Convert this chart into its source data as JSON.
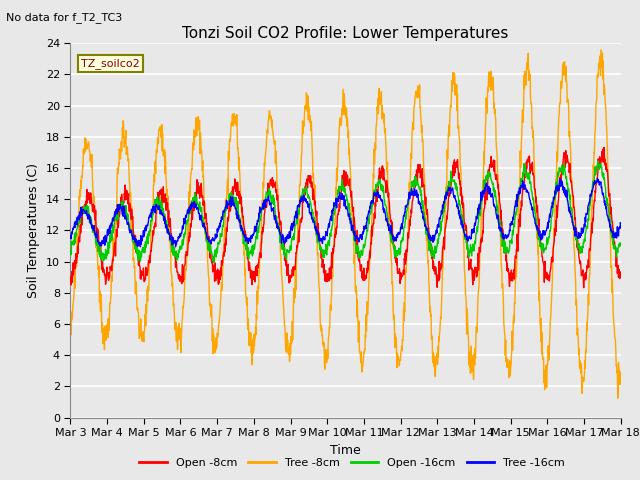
{
  "title": "Tonzi Soil CO2 Profile: Lower Temperatures",
  "subtitle": "No data for f_T2_TC3",
  "xlabel": "Time",
  "ylabel": "Soil Temperatures (C)",
  "ylim": [
    0,
    24
  ],
  "yticks": [
    0,
    2,
    4,
    6,
    8,
    10,
    12,
    14,
    16,
    18,
    20,
    22,
    24
  ],
  "x_labels": [
    "Mar 3",
    "Mar 4",
    "Mar 5",
    "Mar 6",
    "Mar 7",
    "Mar 8",
    "Mar 9",
    "Mar 10",
    "Mar 11",
    "Mar 12",
    "Mar 13",
    "Mar 14",
    "Mar 15",
    "Mar 16",
    "Mar 17",
    "Mar 18"
  ],
  "legend_label": "TZ_soilco2",
  "legend_entries": [
    "Open -8cm",
    "Tree -8cm",
    "Open -16cm",
    "Tree -16cm"
  ],
  "legend_colors": [
    "#ff0000",
    "#ffa500",
    "#00cc00",
    "#0000ff"
  ],
  "bg_color": "#e8e8e8",
  "gridcolor": "#ffffff",
  "line_colors": {
    "open_8cm": "#ff0000",
    "tree_8cm": "#ffa500",
    "open_16cm": "#00cc00",
    "tree_16cm": "#0000ff"
  }
}
